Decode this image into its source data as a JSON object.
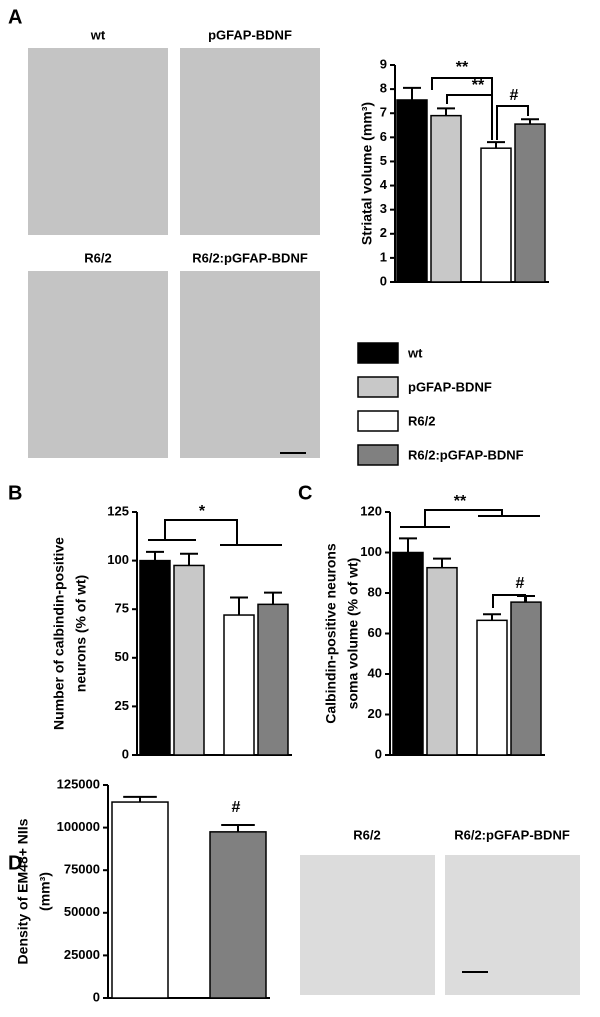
{
  "panel_labels": [
    "A",
    "B",
    "C",
    "D"
  ],
  "brain_images": [
    "wt",
    "pGFAP-BDNF",
    "R6/2",
    "R6/2:pGFAP-BDNF"
  ],
  "micrographs": [
    "R6/2",
    "R6/2:pGFAP-BDNF"
  ],
  "legend": [
    {
      "name": "wt",
      "color": "#000000"
    },
    {
      "name": "pGFAP-BDNF",
      "color": "#c8c8c8"
    },
    {
      "name": "R6/2",
      "color": "#ffffff"
    },
    {
      "name": "R6/2:pGFAP-BDNF",
      "color": "#808080"
    }
  ],
  "chart_data": [
    {
      "type": "bar",
      "ylabel": [
        "Striatal volume (mm³)"
      ],
      "values": [
        7.55,
        6.9,
        5.55,
        6.55
      ],
      "errors": [
        0.5,
        0.3,
        0.25,
        0.2
      ],
      "colors": [
        "#000000",
        "#c8c8c8",
        "#ffffff",
        "#808080"
      ],
      "ylim": [
        0,
        9
      ],
      "yticks": [
        0,
        1,
        2,
        3,
        4,
        5,
        6,
        7,
        8,
        9
      ],
      "annotations": [
        "**",
        "**",
        "#"
      ]
    },
    {
      "type": "bar",
      "ylabel": [
        "Number of calbindin-positive",
        "neurons (% of wt)"
      ],
      "values": [
        100,
        97.5,
        72,
        77.5
      ],
      "errors": [
        4.5,
        6,
        9,
        6
      ],
      "colors": [
        "#000000",
        "#c8c8c8",
        "#ffffff",
        "#808080"
      ],
      "ylim": [
        0,
        125
      ],
      "yticks": [
        0,
        25,
        50,
        75,
        100,
        125
      ],
      "annotations": [
        "*"
      ]
    },
    {
      "type": "bar",
      "ylabel": [
        "Calbindin-positive neurons",
        "soma volume (% of wt)"
      ],
      "values": [
        100,
        92.5,
        66.5,
        75.5
      ],
      "errors": [
        7,
        4.5,
        3,
        3
      ],
      "colors": [
        "#000000",
        "#c8c8c8",
        "#ffffff",
        "#808080"
      ],
      "ylim": [
        0,
        120
      ],
      "yticks": [
        0,
        20,
        40,
        60,
        80,
        100,
        120
      ],
      "annotations": [
        "**",
        "#"
      ]
    },
    {
      "type": "bar",
      "ylabel": [
        "Density of EM48+ NIIs",
        "(mm³)"
      ],
      "values": [
        115000,
        97500
      ],
      "errors": [
        3000,
        4000
      ],
      "colors": [
        "#ffffff",
        "#808080"
      ],
      "ylim": [
        0,
        125000
      ],
      "yticks": [
        0,
        25000,
        50000,
        75000,
        100000,
        125000
      ],
      "annotations": [
        "#"
      ]
    }
  ]
}
